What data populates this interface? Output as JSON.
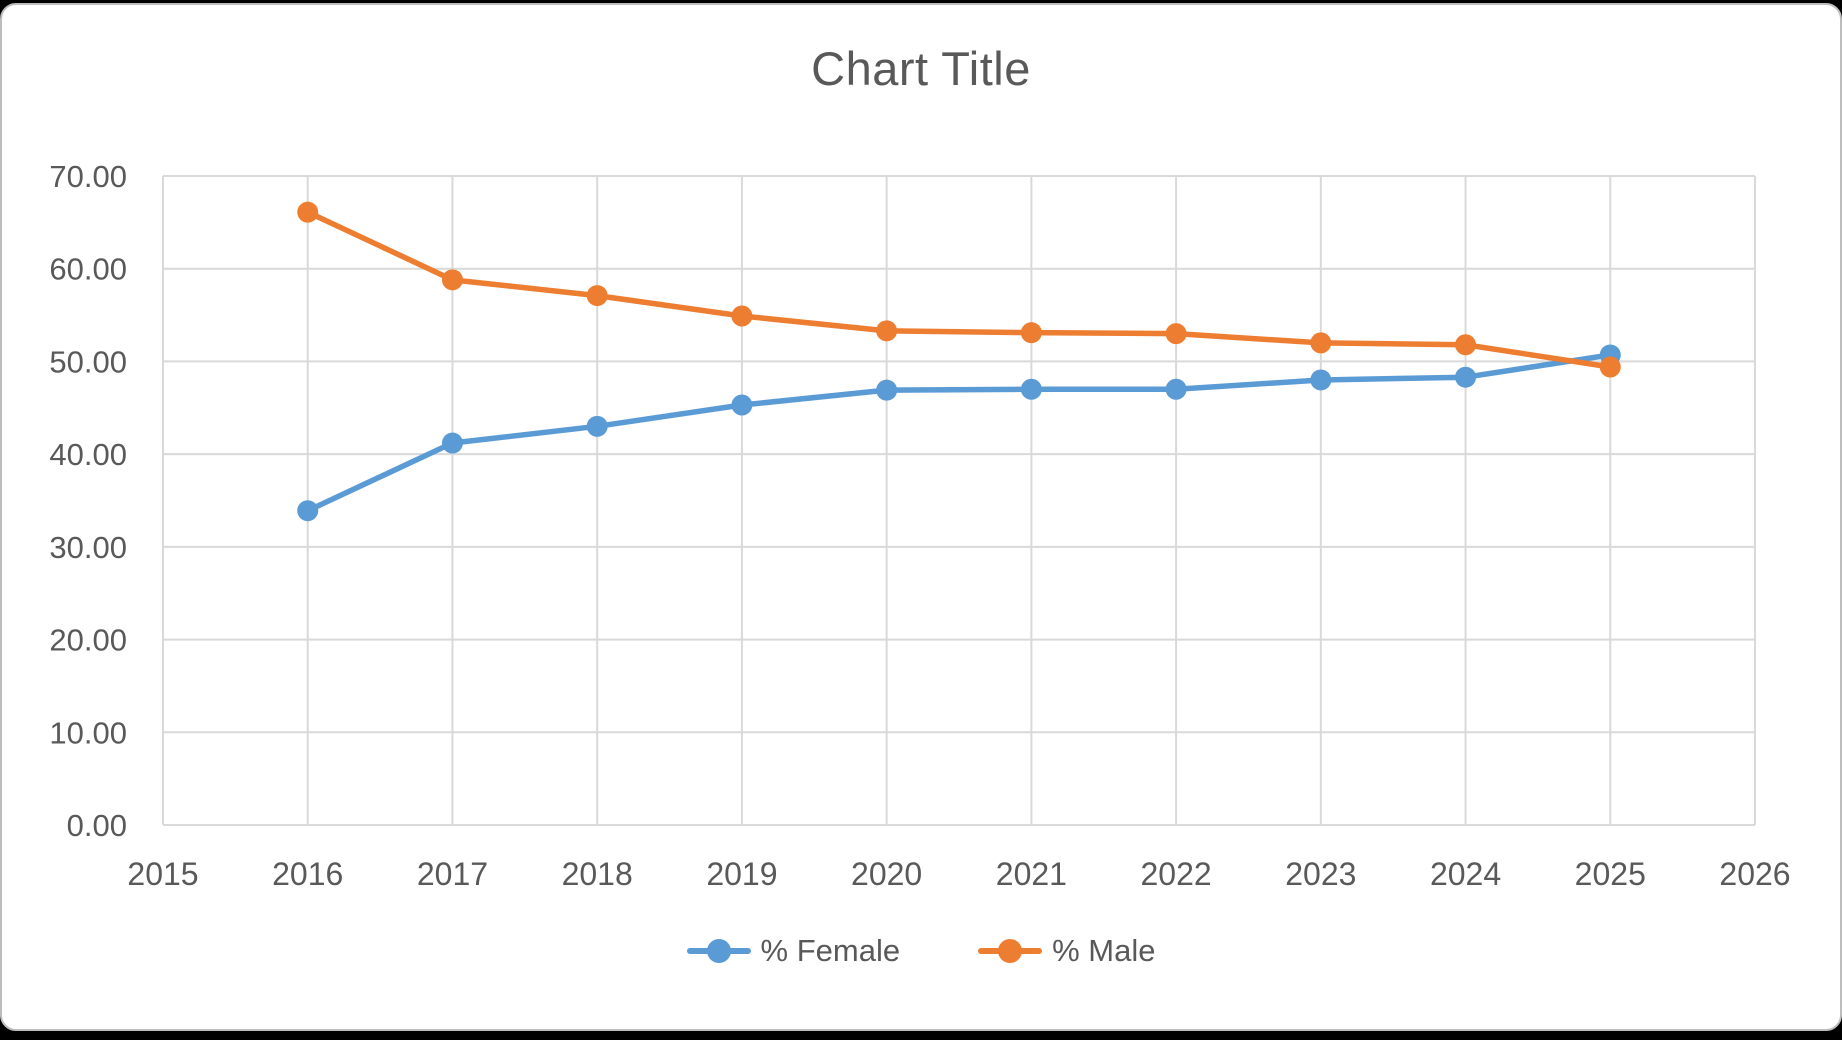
{
  "window": {
    "background": "#000000",
    "canvas_background": "#ffffff",
    "frame_border_color": "#bdbdbd"
  },
  "chart_data": {
    "type": "line",
    "title": "Chart Title",
    "title_color": "#595959",
    "x": [
      2016,
      2017,
      2018,
      2019,
      2020,
      2021,
      2022,
      2023,
      2024,
      2025
    ],
    "series": [
      {
        "name": "% Female",
        "color": "#5B9BD5",
        "values": [
          33.9,
          41.2,
          43.0,
          45.3,
          46.9,
          47.0,
          47.0,
          48.0,
          48.3,
          50.7
        ]
      },
      {
        "name": "% Male",
        "color": "#ED7D31",
        "values": [
          66.1,
          58.8,
          57.1,
          54.9,
          53.3,
          53.1,
          53.0,
          52.0,
          51.8,
          49.4
        ]
      }
    ],
    "x_axis": {
      "ticks": [
        "2015",
        "2016",
        "2017",
        "2018",
        "2019",
        "2020",
        "2021",
        "2022",
        "2023",
        "2024",
        "2025",
        "2026"
      ],
      "min": 2015,
      "max": 2026
    },
    "y_axis": {
      "tick_labels": [
        "0.00",
        "10.00",
        "20.00",
        "30.00",
        "40.00",
        "50.00",
        "60.00",
        "70.00"
      ],
      "min": 0,
      "max": 70,
      "step": 10
    },
    "grid": {
      "horizontal": true,
      "vertical": true,
      "color": "#D9D9D9"
    },
    "axis_label_color": "#595959",
    "legend": {
      "position": "bottom",
      "entries": [
        "% Female",
        "% Male"
      ]
    }
  }
}
